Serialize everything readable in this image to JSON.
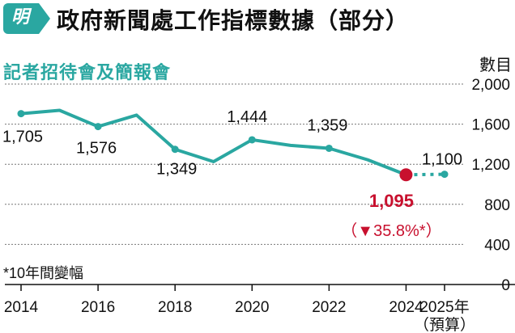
{
  "header": {
    "logo": "明",
    "title": "政府新聞處工作指標數據（部分）"
  },
  "footnote": "*10年間變幅",
  "chart_data": {
    "type": "line",
    "title": "記者招待會及簡報會",
    "ylabel": "數目",
    "ylim": [
      0,
      2000
    ],
    "yticks": [
      "0",
      "400",
      "800",
      "1,200",
      "1,600",
      "2,000"
    ],
    "ytick_values": [
      0,
      400,
      800,
      1200,
      1600,
      2000
    ],
    "xticks": [
      "2014",
      "2016",
      "2018",
      "2020",
      "2022",
      "2024",
      "2025年"
    ],
    "xtick_values": [
      2014,
      2016,
      2018,
      2020,
      2022,
      2024,
      2025
    ],
    "x_extra_label": "（預算）",
    "grid": true,
    "colors": {
      "line": "#2aa7a1",
      "highlight": "#c8102e",
      "axis": "#111111"
    },
    "series": [
      {
        "x": [
          2014,
          2015,
          2016,
          2017,
          2018,
          2019,
          2020,
          2021,
          2022,
          2023,
          2024
        ],
        "values": [
          1705,
          1738,
          1576,
          1690,
          1349,
          1226,
          1444,
          1388,
          1359,
          1245,
          1095
        ],
        "style": "solid"
      },
      {
        "x": [
          2024,
          2025
        ],
        "values": [
          1095,
          1100
        ],
        "style": "dashed"
      }
    ],
    "data_labels": [
      {
        "x": 2014,
        "y": 1705,
        "text": "1,705"
      },
      {
        "x": 2016,
        "y": 1576,
        "text": "1,576"
      },
      {
        "x": 2018,
        "y": 1349,
        "text": "1,349"
      },
      {
        "x": 2020,
        "y": 1444,
        "text": "1,444"
      },
      {
        "x": 2022,
        "y": 1359,
        "text": "1,359"
      },
      {
        "x": 2025,
        "y": 1100,
        "text": "1,100"
      },
      {
        "x": 2024,
        "y": 1095,
        "text": "1,095",
        "highlight": true
      }
    ],
    "highlight_point": {
      "x": 2024,
      "y": 1095
    },
    "annotation": "（▼35.8%*）"
  }
}
